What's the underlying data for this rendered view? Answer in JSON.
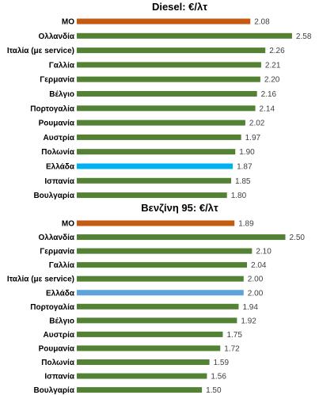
{
  "chart_data": [
    {
      "type": "bar",
      "orientation": "horizontal",
      "title": "Diesel: €/λτ",
      "categories": [
        "ΜΟ",
        "Ολλανδία",
        "Ιταλία (με service)",
        "Γαλλία",
        "Γερμανία",
        "Βέλγιο",
        "Πορτογαλία",
        "Ρουμανία",
        "Αυστρία",
        "Πολωνία",
        "Ελλάδα",
        "Ισπανία",
        "Βουλγαρία"
      ],
      "values": [
        2.08,
        2.58,
        2.26,
        2.21,
        2.2,
        2.16,
        2.14,
        2.02,
        1.97,
        1.9,
        1.87,
        1.85,
        1.8
      ],
      "value_labels": [
        "2.08",
        "2.58",
        "2.26",
        "2.21",
        "2.20",
        "2.16",
        "2.14",
        "2.02",
        "1.97",
        "1.90",
        "1.87",
        "1.85",
        "1.80"
      ],
      "bar_colors": [
        "#c55a11",
        "#548235",
        "#548235",
        "#548235",
        "#548235",
        "#548235",
        "#548235",
        "#548235",
        "#548235",
        "#548235",
        "#00b0f0",
        "#548235",
        "#548235"
      ],
      "xlim": [
        0,
        2.7
      ],
      "grid": false,
      "legend": "none"
    },
    {
      "type": "bar",
      "orientation": "horizontal",
      "title": "Βενζίνη 95: €/λτ",
      "categories": [
        "ΜΟ",
        "Ολλανδία",
        "Γερμανία",
        "Γαλλία",
        "Ιταλία (με service)",
        "Ελλάδα",
        "Πορτογαλία",
        "Βέλγιο",
        "Αυστρία",
        "Ρουμανία",
        "Πολωνία",
        "Ισπανία",
        "Βουλγαρία"
      ],
      "values": [
        1.89,
        2.5,
        2.1,
        2.04,
        2.0,
        2.0,
        1.94,
        1.92,
        1.75,
        1.72,
        1.59,
        1.56,
        1.5
      ],
      "value_labels": [
        "1.89",
        "2.50",
        "2.10",
        "2.04",
        "2.00",
        "2.00",
        "1.94",
        "1.92",
        "1.75",
        "1.72",
        "1.59",
        "1.56",
        "1.50"
      ],
      "bar_colors": [
        "#c55a11",
        "#548235",
        "#548235",
        "#548235",
        "#548235",
        "#5ba3d9",
        "#548235",
        "#548235",
        "#548235",
        "#548235",
        "#548235",
        "#548235",
        "#548235"
      ],
      "xlim": [
        0,
        2.7
      ],
      "grid": false,
      "legend": "none"
    }
  ]
}
